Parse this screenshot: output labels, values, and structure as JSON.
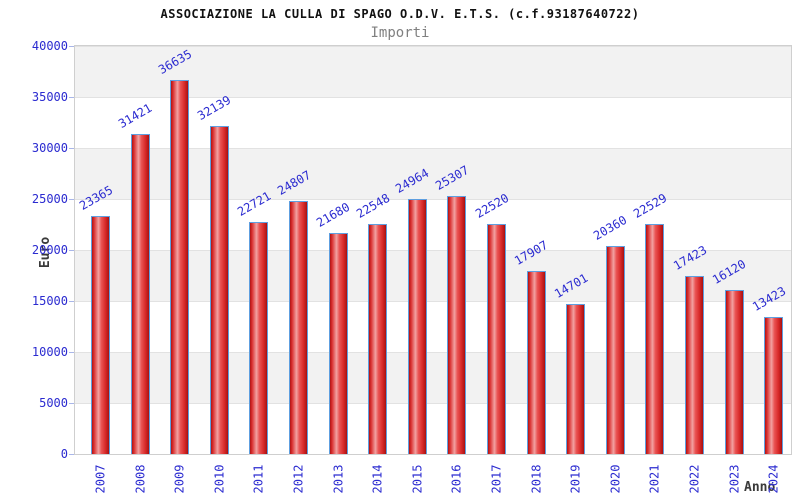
{
  "header": {
    "title": "ASSOCIAZIONE LA CULLA DI SPAGO O.D.V. E.T.S. (c.f.93187640722)",
    "subtitle": "Importi"
  },
  "chart_data": {
    "type": "bar",
    "title": "ASSOCIAZIONE LA CULLA DI SPAGO O.D.V. E.T.S. (c.f.93187640722)",
    "subtitle": "Importi",
    "xlabel": "Anno",
    "ylabel": "Euro",
    "categories": [
      "2007",
      "2008",
      "2009",
      "2010",
      "2011",
      "2012",
      "2013",
      "2014",
      "2015",
      "2016",
      "2017",
      "2018",
      "2019",
      "2020",
      "2021",
      "2022",
      "2023",
      "2024"
    ],
    "values": [
      23365,
      31421,
      36635,
      32139,
      22721,
      24807,
      21680,
      22548,
      24964,
      25307,
      22520,
      17907,
      14701,
      20360,
      22529,
      17423,
      16120,
      13423
    ],
    "ylim": [
      0,
      40000
    ],
    "y_ticks": [
      0,
      5000,
      10000,
      15000,
      20000,
      25000,
      30000,
      35000,
      40000
    ],
    "grid": "alternating horizontal bands, gridline every 5000",
    "legend_position": "none",
    "bar_labels_rotation_deg": -30,
    "x_tick_rotation_deg": -90,
    "colors": {
      "bar_fill": "#d92b2b",
      "bar_highlight": "#f2a2a2",
      "bar_border": "#5e9fe0",
      "value_label": "#2b2bd0",
      "axis_tick_label": "#2b2bd0",
      "axis_title": "#3a3a3a",
      "band_gray": "#f2f2f2",
      "band_white": "#ffffff",
      "gridline": "#e2e2e2",
      "plot_border": "#cfcfcf",
      "title_color": "#111111",
      "subtitle_color": "#808080"
    }
  }
}
